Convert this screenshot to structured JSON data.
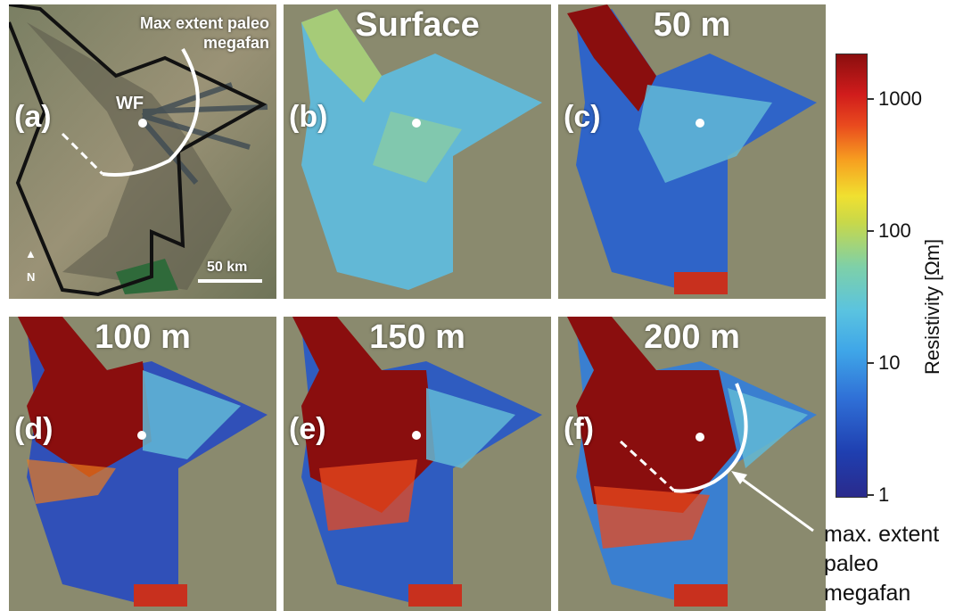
{
  "panels": [
    {
      "id": "a",
      "label": "(a)",
      "depth": ""
    },
    {
      "id": "b",
      "label": "(b)",
      "depth": "Surface"
    },
    {
      "id": "c",
      "label": "(c)",
      "depth": "50 m"
    },
    {
      "id": "d",
      "label": "(d)",
      "depth": "100 m"
    },
    {
      "id": "e",
      "label": "(e)",
      "depth": "150 m"
    },
    {
      "id": "f",
      "label": "(f)",
      "depth": "200 m"
    }
  ],
  "panel_a": {
    "wf_label": "WF",
    "note_line1": "Max extent paleo",
    "note_line2": "megafan",
    "scale_label": "50 km",
    "north_label": "N"
  },
  "colorbar": {
    "title": "Resistivity [Ωm]",
    "ticks": [
      "1000",
      "100",
      "10",
      "1"
    ],
    "scale": "log",
    "range": [
      1,
      2000
    ]
  },
  "annotation": {
    "line1": "max. extent",
    "line2": "paleo",
    "line3": "megafan"
  },
  "colors": {
    "high": "#8a0e0e",
    "mid": "#f0e030",
    "low": "#2a2a8c",
    "land": "#8a8a6e"
  }
}
